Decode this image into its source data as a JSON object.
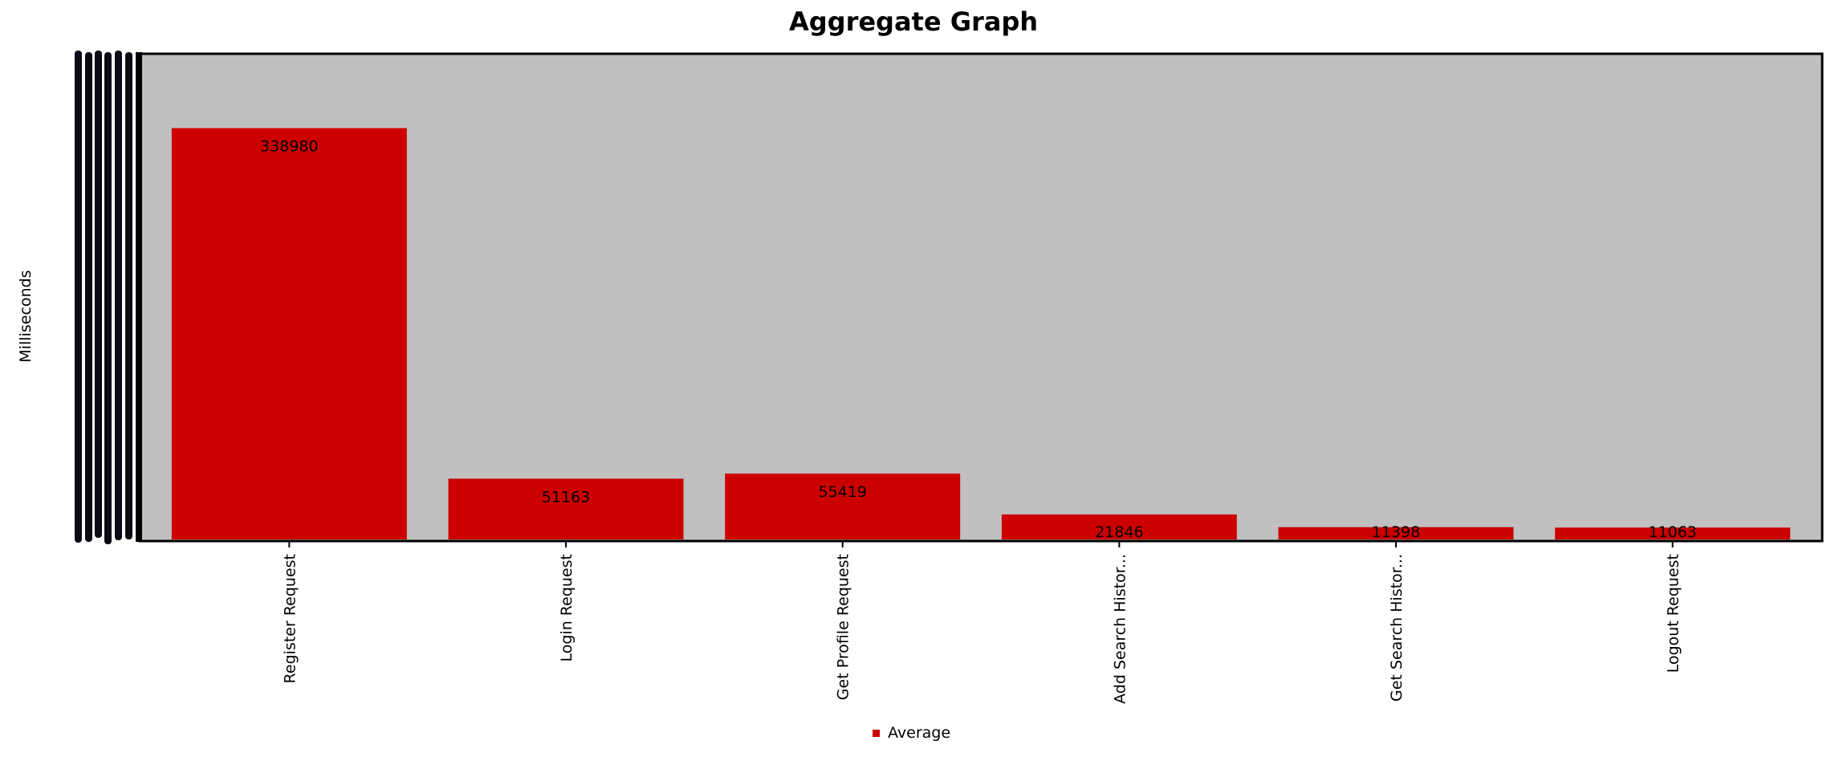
{
  "chart_data": {
    "type": "bar",
    "title": "Aggregate Graph",
    "ylabel": "Milliseconds",
    "xlabel": "",
    "categories": [
      "Register Request",
      "Login Request",
      "Get Profile Request",
      "Add Search Histor...",
      "Get Search Histor...",
      "Logout Request"
    ],
    "series": [
      {
        "name": "Average",
        "values": [
          338980,
          51163,
          55419,
          21846,
          11398,
          11063
        ]
      }
    ],
    "data_labels": [
      "338980",
      "51163",
      "55419",
      "21846",
      "11398",
      "11063"
    ],
    "ylim": [
      0,
      400000
    ],
    "grid": false,
    "legend": "bottom-center",
    "colors": {
      "bar": "#cc0000",
      "plot_background": "#c0c0c0",
      "axis": "#000000"
    }
  }
}
